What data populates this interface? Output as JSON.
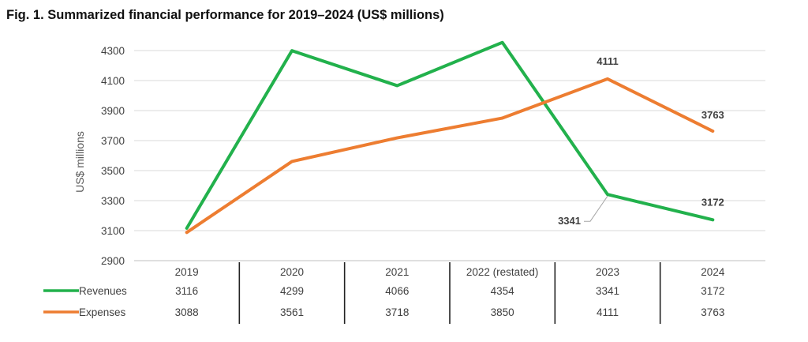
{
  "figure": {
    "title": "Fig. 1. Summarized financial performance for 2019–2024 (US$ millions)"
  },
  "chart_data": {
    "type": "line",
    "title": "Fig. 1. Summarized financial performance for 2019–2024 (US$ millions)",
    "xlabel": "",
    "ylabel": "US$ millions",
    "ylim": [
      2900,
      4400
    ],
    "yticks": [
      2900,
      3100,
      3300,
      3500,
      3700,
      3900,
      4100,
      4300
    ],
    "categories": [
      "2019",
      "2020",
      "2021",
      "2022 (restated)",
      "2023",
      "2024"
    ],
    "grid": true,
    "legend": "data-table-left",
    "series": [
      {
        "name": "Revenues",
        "color": "#22b14c",
        "values": [
          3116,
          4299,
          4066,
          4354,
          3341,
          3172
        ]
      },
      {
        "name": "Expenses",
        "color": "#ed7d31",
        "values": [
          3088,
          3561,
          3718,
          3850,
          4111,
          3763
        ]
      }
    ],
    "annotations": [
      {
        "series": "Expenses",
        "category": "2023",
        "text": "4111"
      },
      {
        "series": "Expenses",
        "category": "2024",
        "text": "3763"
      },
      {
        "series": "Revenues",
        "category": "2023",
        "text": "3341"
      },
      {
        "series": "Revenues",
        "category": "2024",
        "text": "3172"
      }
    ]
  }
}
